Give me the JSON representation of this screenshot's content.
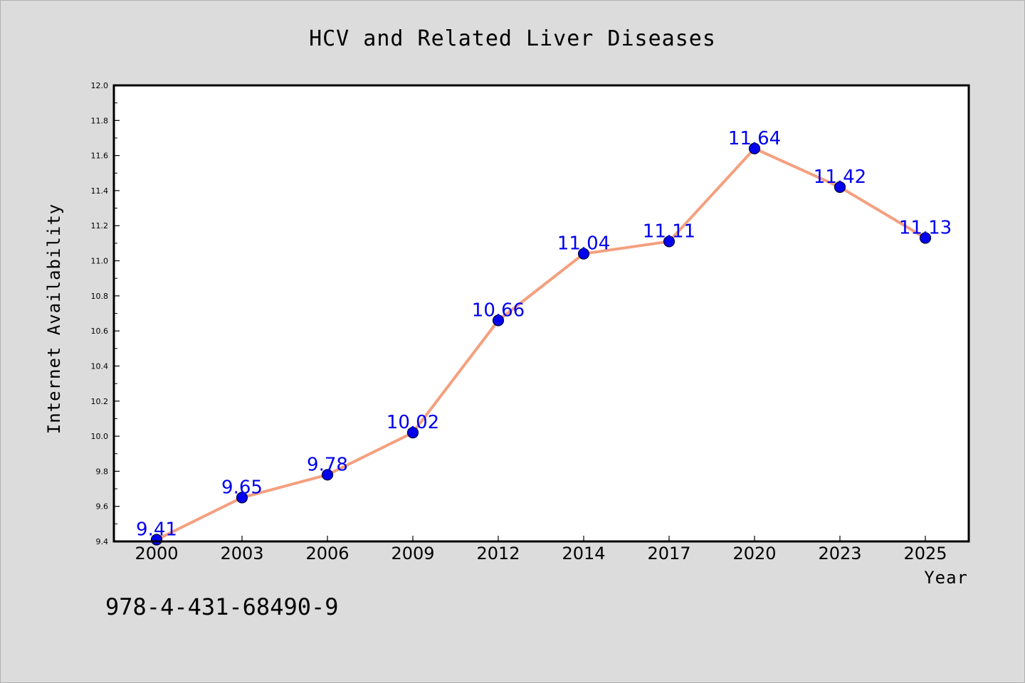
{
  "chart_data": {
    "type": "line",
    "title": "HCV and Related Liver Diseases",
    "xlabel": "Year",
    "ylabel": "Internet Availability",
    "categories": [
      "2000",
      "2003",
      "2006",
      "2009",
      "2012",
      "2014",
      "2017",
      "2020",
      "2023",
      "2025"
    ],
    "series": [
      {
        "values": [
          9.41,
          9.65,
          9.78,
          10.02,
          10.66,
          11.04,
          11.11,
          11.64,
          11.42,
          11.13
        ]
      }
    ],
    "data_labels": [
      "9.41",
      "9.65",
      "9.78",
      "10.02",
      "10.66",
      "11.04",
      "11.11",
      "11.64",
      "11.42",
      "11.13"
    ],
    "ylim": [
      9.4,
      12.0
    ],
    "yticks": [
      "9.4",
      "9.6",
      "9.8",
      "10.0",
      "10.2",
      "10.4",
      "10.6",
      "10.8",
      "11.0",
      "11.2",
      "11.4",
      "11.6",
      "11.8",
      "12.0"
    ],
    "grid": false,
    "colors": {
      "line": "#f4a07f",
      "marker": "#0000ee",
      "marker_edge": "#000033",
      "label": "#0000ee",
      "plot_bg": "#ffffff",
      "figure_bg": "#dcdcdc"
    }
  },
  "footer": {
    "identifier": "978-4-431-68490-9"
  }
}
